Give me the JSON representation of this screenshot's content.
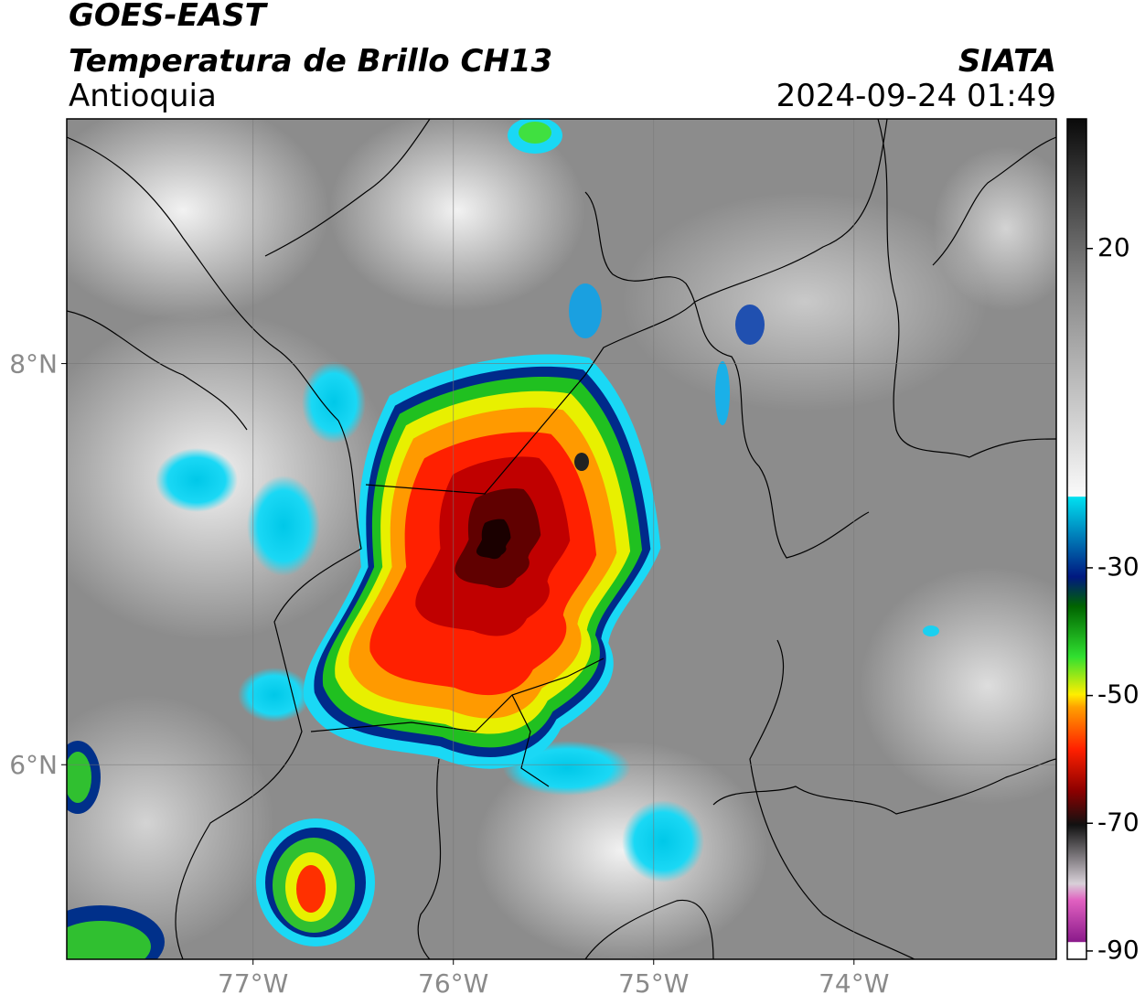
{
  "header": {
    "title": "GOES-EAST",
    "subtitle": "Temperatura de Brillo CH13",
    "region": "Antioquia",
    "source": "SIATA",
    "datetime": "2024-09-24 01:49"
  },
  "map": {
    "lon_range": [
      -77.93,
      -72.99
    ],
    "lat_range": [
      5.03,
      9.22
    ],
    "lon_ticks": [
      {
        "value": -77,
        "label": "77°W"
      },
      {
        "value": -76,
        "label": "76°W"
      },
      {
        "value": -75,
        "label": "75°W"
      },
      {
        "value": -74,
        "label": "74°W"
      }
    ],
    "lat_ticks": [
      {
        "value": 8,
        "label": "8°N"
      },
      {
        "value": 6,
        "label": "6°N"
      }
    ],
    "grid": true
  },
  "colorbar": {
    "range": [
      -91.3,
      40.3
    ],
    "ticks": [
      -90,
      -70,
      -50,
      -30,
      20
    ]
  }
}
